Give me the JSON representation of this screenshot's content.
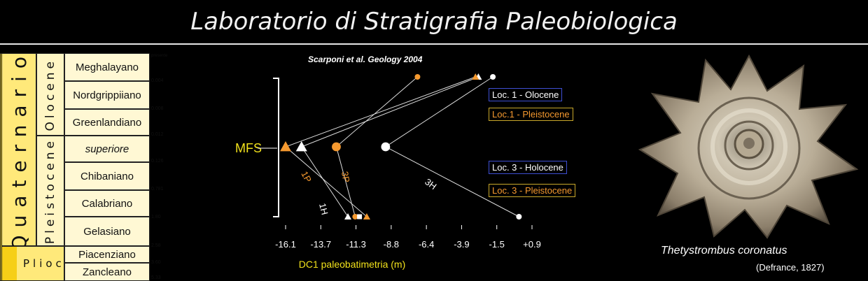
{
  "header": {
    "title": "Laboratorio di Stratigrafia Paleobiologica"
  },
  "stratigraphy": {
    "system": "Quaternario",
    "lower_system": "Plioc",
    "series": [
      "Olocene",
      "Pleistocene"
    ],
    "stages": [
      "Meghalayano",
      "Nordgrippiiano",
      "Greenlandiano",
      "superiore",
      "Chibaniano",
      "Calabriano",
      "Gelasiano",
      "Piacenziano",
      "Zancleano"
    ],
    "ages": [
      "presente",
      "0.004",
      "0.008",
      "0.012",
      "0.126",
      "0.781",
      "1.80",
      "2.58",
      "3.60",
      "5.33"
    ]
  },
  "chart_data": {
    "type": "scatter",
    "title": "Scarponi et al. Geology 2004",
    "xlabel": "DC1 paleobatimetria (m)",
    "xticks": [
      "-16.1",
      "-13.7",
      "-11.3",
      "-8.8",
      "-6.4",
      "-3.9",
      "-1.5",
      "+0.9"
    ],
    "xlim": [
      -16.1,
      0.9
    ],
    "annotation": "MFS",
    "line_labels": [
      "1P",
      "3P",
      "1H",
      "3H"
    ],
    "legend": [
      "Loc. 1 - Olocene",
      "Loc.1 - Pleistocene",
      "Loc. 3  - Holocene",
      "Loc. 3 - Pleistocene"
    ],
    "series": [
      {
        "name": "1H",
        "points": [
          [
            -11.8,
            0
          ],
          [
            -15.0,
            1
          ],
          [
            -2.8,
            2
          ]
        ]
      },
      {
        "name": "1P",
        "points": [
          [
            -10.5,
            0
          ],
          [
            -16.1,
            1
          ],
          [
            -3.0,
            2
          ]
        ]
      },
      {
        "name": "3H",
        "points": [
          [
            0.0,
            0
          ],
          [
            -9.2,
            1
          ],
          [
            -1.8,
            2
          ]
        ]
      },
      {
        "name": "3P",
        "points": [
          [
            -11.3,
            0
          ],
          [
            -12.6,
            1
          ],
          [
            -7.0,
            2
          ]
        ]
      }
    ],
    "extra_points": [
      {
        "label": "square",
        "x": -11.0,
        "y": 0
      }
    ]
  },
  "colors": {
    "olocene": "#ffffff",
    "pleistocene": "#f5992f",
    "axis_label": "#f2e21b"
  },
  "specimen": {
    "name": "Thetystrombus coronatus",
    "author": "(Defrance, 1827)",
    "icon": "shell-photo"
  }
}
